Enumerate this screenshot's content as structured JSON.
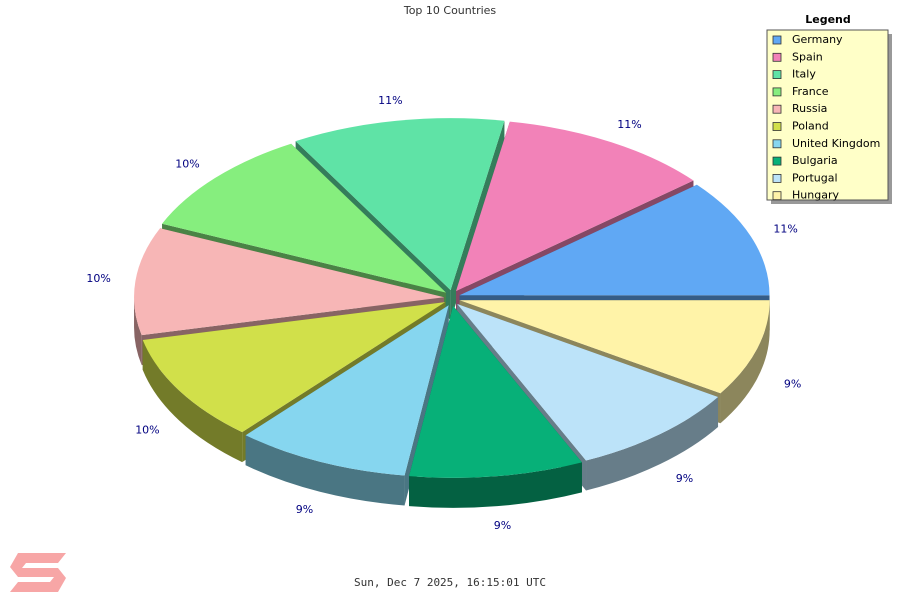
{
  "chart_data": {
    "type": "pie",
    "title": "Top 10 Countries",
    "categories": [
      "Germany",
      "Spain",
      "Italy",
      "France",
      "Russia",
      "Poland",
      "United Kingdom",
      "Bulgaria",
      "Portugal",
      "Hungary"
    ],
    "values": [
      11,
      11,
      11,
      10,
      10,
      10,
      9,
      9,
      9,
      9
    ],
    "value_labels": [
      "11%",
      "11%",
      "11%",
      "10%",
      "10%",
      "10%",
      "9%",
      "9%",
      "9%",
      "9%"
    ],
    "colors": [
      "#60a8f4",
      "#f282b8",
      "#5fe3a6",
      "#86ee7e",
      "#f7b6b6",
      "#d1e04a",
      "#86d6ef",
      "#07b078",
      "#bce3f9",
      "#fff3a8"
    ],
    "legend_title": "Legend",
    "legend_position": "top-right",
    "timestamp": "Sun, Dec 7 2025, 16:15:01 UTC"
  }
}
